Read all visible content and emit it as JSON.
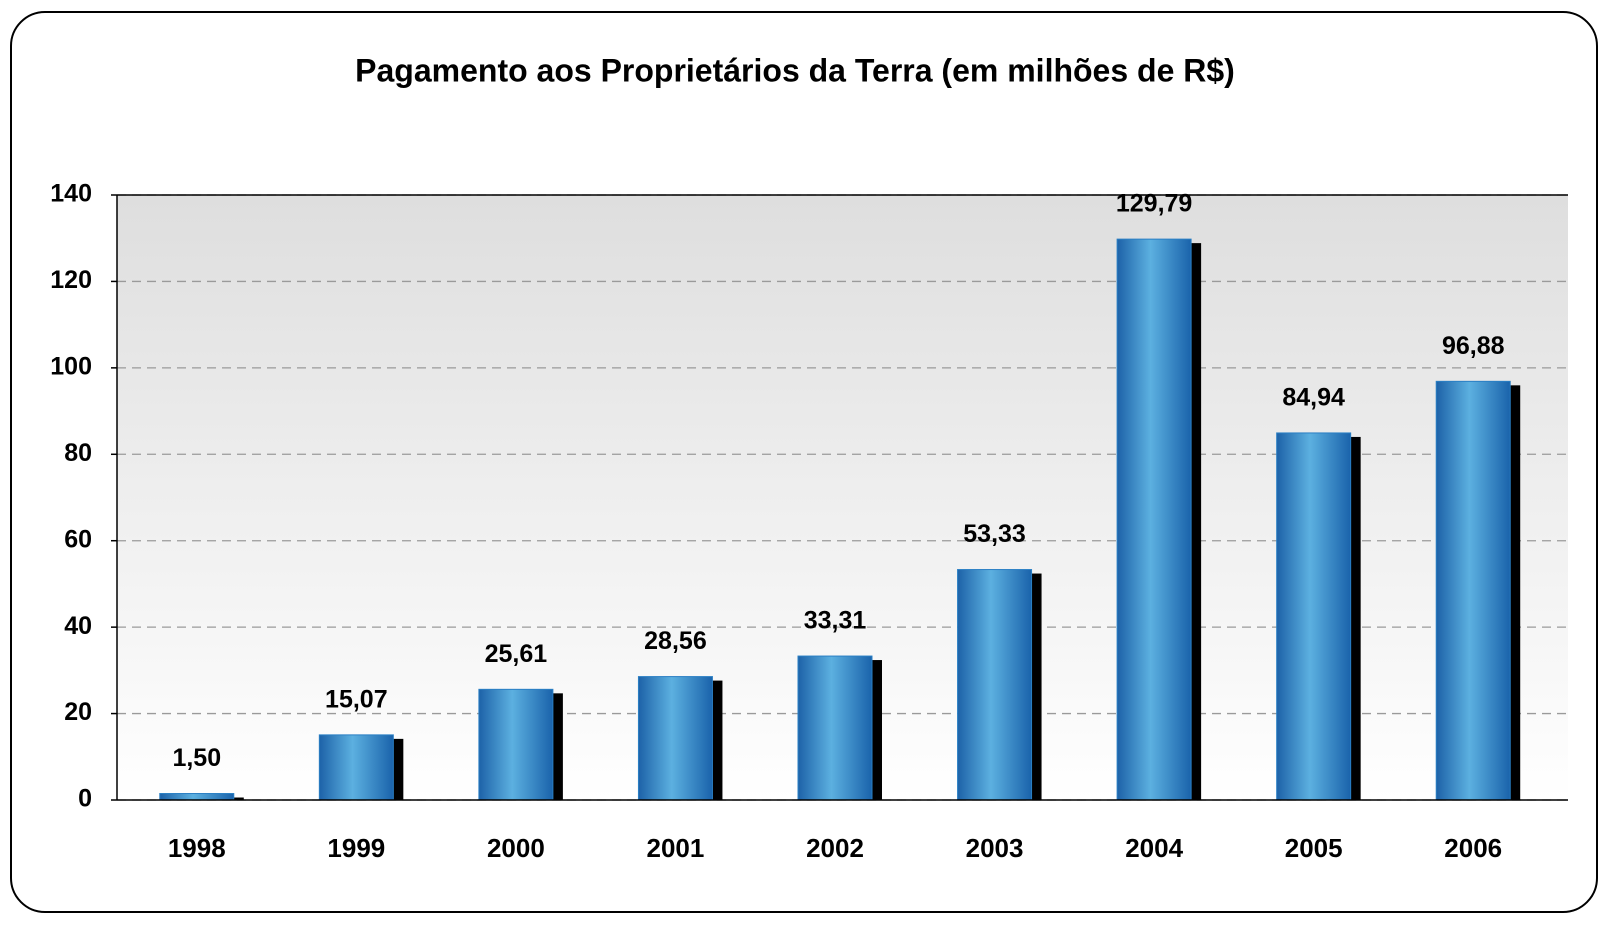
{
  "chart_data": {
    "type": "bar",
    "title": "Pagamento aos Proprietários da Terra (em milhões de R$)",
    "categories": [
      "1998",
      "1999",
      "2000",
      "2001",
      "2002",
      "2003",
      "2004",
      "2005",
      "2006"
    ],
    "values": [
      1.5,
      15.07,
      25.61,
      28.56,
      33.31,
      53.33,
      129.79,
      84.94,
      96.88
    ],
    "value_labels": [
      "1,50",
      "15,07",
      "25,61",
      "28,56",
      "33,31",
      "53,33",
      "129,79",
      "84,94",
      "96,88"
    ],
    "color": "#2a7fc4",
    "ylim": [
      0,
      140
    ],
    "yticks": [
      0,
      20,
      40,
      60,
      80,
      100,
      120,
      140
    ],
    "grid": true
  }
}
